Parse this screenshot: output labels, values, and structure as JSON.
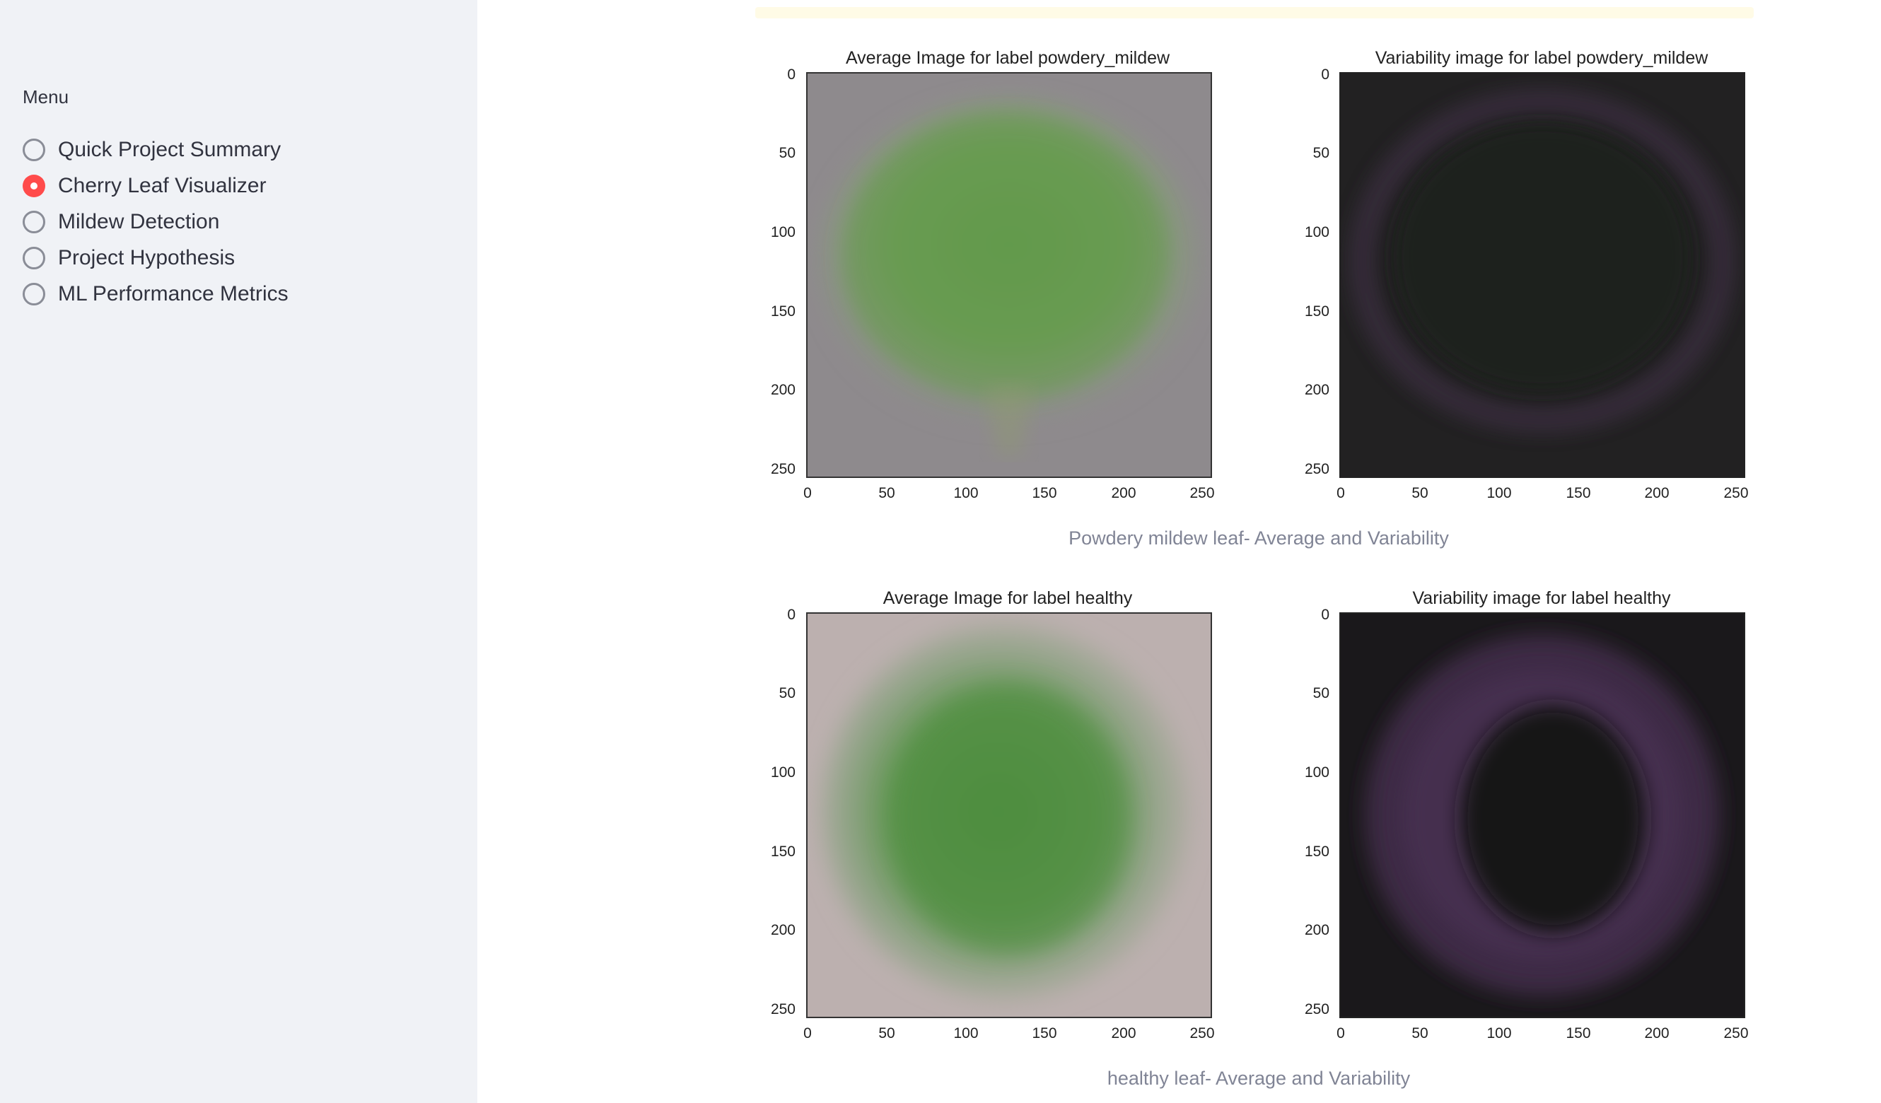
{
  "sidebar": {
    "menu_title": "Menu",
    "items": [
      {
        "label": "Quick Project Summary",
        "selected": false
      },
      {
        "label": "Cherry Leaf Visualizer",
        "selected": true
      },
      {
        "label": "Mildew Detection",
        "selected": false
      },
      {
        "label": "Project Hypothesis",
        "selected": false
      },
      {
        "label": "ML Performance Metrics",
        "selected": false
      }
    ]
  },
  "plots": {
    "pm_avg_title": "Average Image for label powdery_mildew",
    "pm_var_title": "Variability image for label powdery_mildew",
    "pm_caption": "Powdery mildew leaf- Average and Variability",
    "h_avg_title": "Average Image for label healthy",
    "h_var_title": "Variability image for label healthy",
    "h_caption": "healthy leaf- Average and Variability",
    "x_ticks": [
      "0",
      "50",
      "100",
      "150",
      "200",
      "250"
    ],
    "y_ticks": [
      "0",
      "50",
      "100",
      "150",
      "200",
      "250"
    ]
  },
  "colors": {
    "accent": "#ff4b4b",
    "sidebar_bg": "#f0f2f6"
  }
}
